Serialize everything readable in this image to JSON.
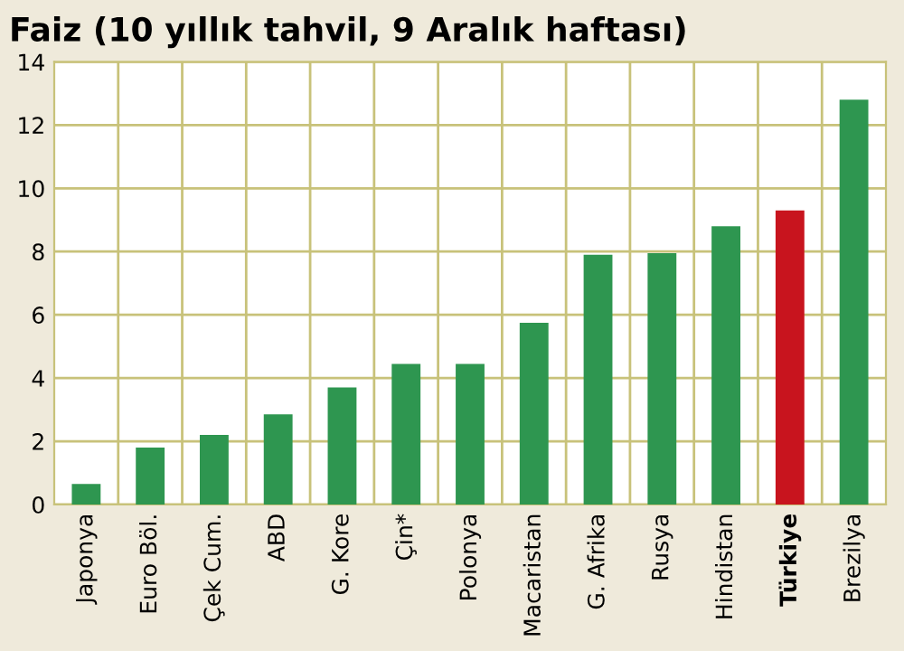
{
  "chart_data": {
    "type": "bar",
    "title": "Faiz (10 yıllık tahvil, 9 Aralık haftası)",
    "categories": [
      "Japonya",
      "Euro Böl.",
      "Çek Cum.",
      "ABD",
      "G. Kore",
      "Çin*",
      "Polonya",
      "Macaristan",
      "G. Afrika",
      "Rusya",
      "Hindistan",
      "Türkiye",
      "Brezilya"
    ],
    "values": [
      0.65,
      1.8,
      2.2,
      2.85,
      3.7,
      4.45,
      4.45,
      5.75,
      7.9,
      7.95,
      8.8,
      9.3,
      12.8
    ],
    "colors": [
      "#2e9650",
      "#2e9650",
      "#2e9650",
      "#2e9650",
      "#2e9650",
      "#2e9650",
      "#2e9650",
      "#2e9650",
      "#2e9650",
      "#2e9650",
      "#2e9650",
      "#c8141e",
      "#2e9650"
    ],
    "ylim": [
      0,
      14
    ],
    "yticks": [
      0,
      2,
      4,
      6,
      8,
      10,
      12,
      14
    ],
    "grid": true
  }
}
